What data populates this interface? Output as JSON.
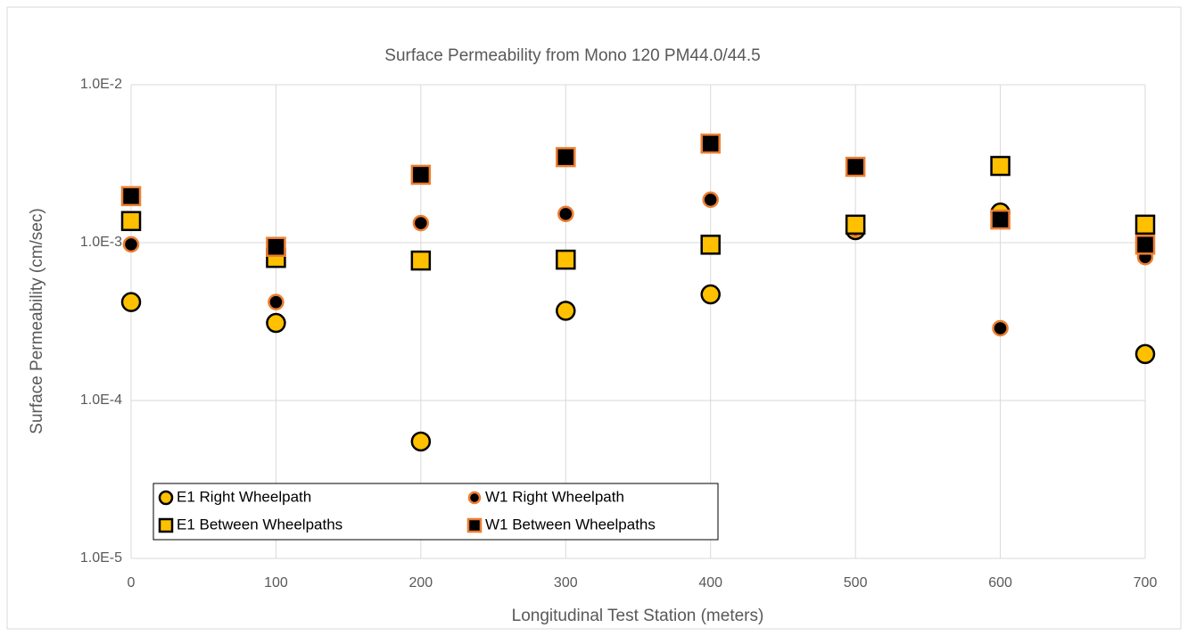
{
  "chart_data": {
    "type": "scatter",
    "title": "Surface Permeability from Mono 120 PM44.0/44.5",
    "xlabel": "Longitudinal Test Station (meters)",
    "ylabel": "Surface Permeability (cm/sec)",
    "x": [
      0,
      100,
      200,
      300,
      400,
      500,
      600,
      700
    ],
    "series": [
      {
        "name": "E1 Right Wheelpath",
        "marker": "circle",
        "color": "#ffc000",
        "edgecolor": "#000000",
        "values": [
          0.00042,
          0.00031,
          5.5e-05,
          0.00037,
          0.00047,
          0.0012,
          0.00155,
          0.000197
        ]
      },
      {
        "name": "W1 Right Wheelpath",
        "marker": "circle",
        "color": "#000000",
        "edgecolor": "#ed7d31",
        "values": [
          0.000975,
          0.00042,
          0.00133,
          0.00152,
          0.00187,
          0.00122,
          0.000287,
          0.00081
        ]
      },
      {
        "name": "E1 Between Wheelpaths",
        "marker": "square",
        "color": "#ffc000",
        "edgecolor": "#000000",
        "values": [
          0.00137,
          0.0008,
          0.00077,
          0.00078,
          0.00097,
          0.0013,
          0.00306,
          0.0013
        ]
      },
      {
        "name": "W1 Between Wheelpaths",
        "marker": "square",
        "color": "#000000",
        "edgecolor": "#ed7d31",
        "values": [
          0.00197,
          0.00094,
          0.00269,
          0.00348,
          0.00424,
          0.00302,
          0.0014,
          0.00097
        ]
      }
    ],
    "xlim": [
      0,
      700
    ],
    "xticks": [
      0,
      100,
      200,
      300,
      400,
      500,
      600,
      700
    ],
    "ylim": [
      1e-05,
      0.01
    ],
    "yscale": "log",
    "yticks": [
      {
        "value": 1e-05,
        "label": "1.0E-5"
      },
      {
        "value": 0.0001,
        "label": "1.0E-4"
      },
      {
        "value": 0.001,
        "label": "1.0E-3"
      },
      {
        "value": 0.01,
        "label": "1.0E-2"
      }
    ],
    "grid": true,
    "legend_loc": "lower left"
  }
}
